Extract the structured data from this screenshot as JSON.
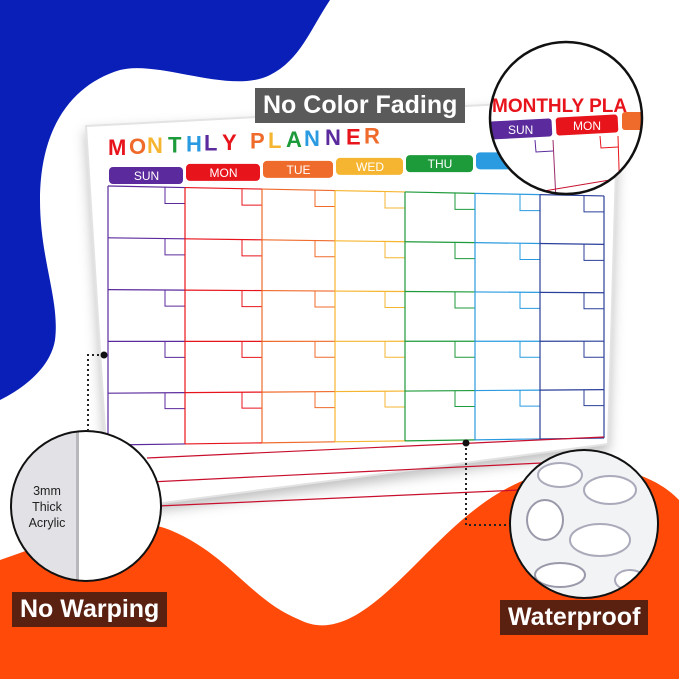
{
  "planner": {
    "title": "MONTHLY PLANNER",
    "days": [
      {
        "label": "SUN",
        "color": "#5b2a9c"
      },
      {
        "label": "MON",
        "color": "#e8141c"
      },
      {
        "label": "TUE",
        "color": "#ef6b2b"
      },
      {
        "label": "WED",
        "color": "#f6b530"
      },
      {
        "label": "THU",
        "color": "#1d9a3a"
      },
      {
        "label": "",
        "color": "#2a9be0"
      },
      {
        "label": "",
        "color": "#2a3f9a"
      }
    ],
    "title_colors": [
      "#e8141c",
      "#ef6b2b",
      "#f6b530",
      "#1d9a3a",
      "#2a9be0",
      "#5b2a9c"
    ]
  },
  "features": {
    "top": "No Color Fading",
    "left": "No Warping",
    "right": "Waterproof",
    "thickness_lines": [
      "3mm",
      "Thick",
      "Acrylic"
    ]
  },
  "zoom_inset": {
    "title": "MONTHLY PLA",
    "days": [
      "SUN",
      "MON"
    ]
  },
  "colors": {
    "blue_blob": "#0a1fb8",
    "orange_blob": "#ff4a0a"
  }
}
